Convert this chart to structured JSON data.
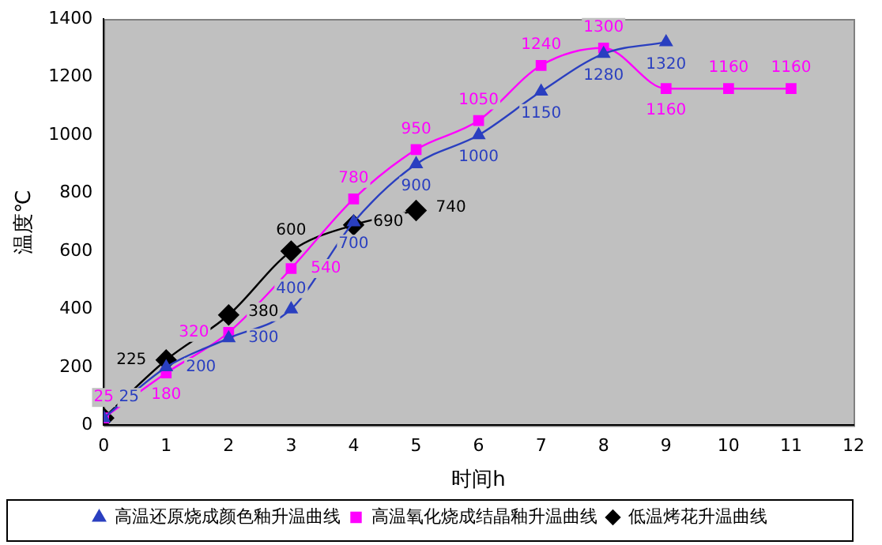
{
  "chart_data": {
    "type": "line",
    "xlabel": "时间h",
    "ylabel": "温度℃",
    "xlim": [
      0,
      12
    ],
    "xticks": [
      0,
      1,
      2,
      3,
      4,
      5,
      6,
      7,
      8,
      9,
      10,
      11,
      12
    ],
    "ylim": [
      0,
      1400
    ],
    "yticks": [
      0,
      200,
      400,
      600,
      800,
      1000,
      1200,
      1400
    ],
    "legend": "bottom",
    "series": [
      {
        "name": "高温还原烧成颜色釉升温曲线",
        "color": "#2a3fc0",
        "marker": "triangle",
        "x": [
          0,
          1,
          2,
          3,
          4,
          5,
          6,
          7,
          8,
          9
        ],
        "values": [
          25,
          200,
          300,
          400,
          700,
          900,
          1000,
          1150,
          1280,
          1320
        ],
        "value_labels": [
          "25",
          "200",
          "300",
          "400",
          "700",
          "900",
          "1000",
          "1150",
          "1280",
          "1320"
        ]
      },
      {
        "name": "高温氧化烧成结晶釉升温曲线",
        "color": "#ff00ff",
        "marker": "square",
        "x": [
          0,
          1,
          2,
          3,
          4,
          5,
          6,
          7,
          8,
          9,
          10,
          11
        ],
        "values": [
          25,
          180,
          320,
          540,
          780,
          950,
          1050,
          1240,
          1300,
          1160,
          1160,
          1160
        ],
        "value_labels": [
          "25",
          "180",
          "320",
          "540",
          "780",
          "950",
          "1050",
          "1240",
          "1300",
          "1160",
          "1160",
          "1160"
        ]
      },
      {
        "name": "低温烤花升温曲线",
        "color": "#000000",
        "marker": "diamond",
        "x": [
          0,
          1,
          2,
          3,
          4,
          5
        ],
        "values": [
          25,
          225,
          380,
          600,
          690,
          740
        ],
        "value_labels": [
          null,
          "225",
          "380",
          "600",
          "690",
          "740"
        ]
      }
    ]
  }
}
